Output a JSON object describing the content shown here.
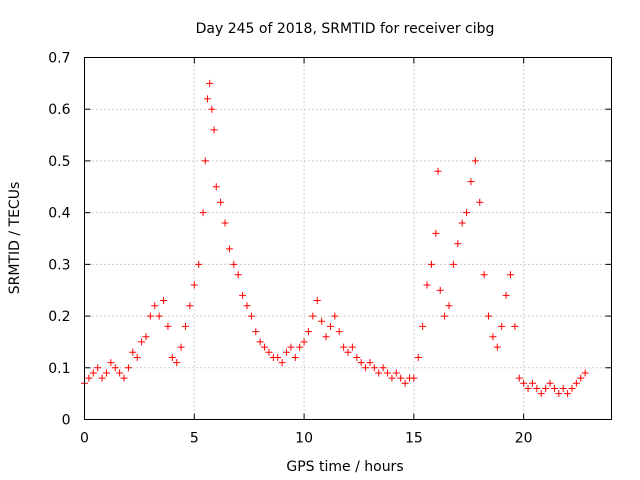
{
  "chart_data": {
    "type": "scatter",
    "title": "Day 245 of 2018, SRMTID for receiver cibg",
    "xlabel": "GPS time / hours",
    "ylabel": "SRMTID / TECUs",
    "xlim": [
      0,
      24
    ],
    "ylim": [
      0,
      0.7
    ],
    "x_ticks": [
      0,
      5,
      10,
      15,
      20
    ],
    "x_tick_labels": [
      "0",
      "5",
      "10",
      "15",
      "20"
    ],
    "y_ticks": [
      0,
      0.1,
      0.2,
      0.3,
      0.4,
      0.5,
      0.6,
      0.7
    ],
    "y_tick_labels": [
      "0",
      "0.1",
      "0.2",
      "0.3",
      "0.4",
      "0.5",
      "0.6",
      "0.7"
    ],
    "grid": true,
    "marker": "plus",
    "series": [
      {
        "name": "SRMTID",
        "color": "#ff0000",
        "x": [
          0.0,
          0.2,
          0.4,
          0.6,
          0.8,
          1.0,
          1.2,
          1.4,
          1.6,
          1.8,
          2.0,
          2.2,
          2.4,
          2.6,
          2.8,
          3.0,
          3.2,
          3.4,
          3.6,
          3.8,
          4.0,
          4.2,
          4.4,
          4.6,
          4.8,
          5.0,
          5.2,
          5.4,
          5.5,
          5.6,
          5.7,
          5.8,
          5.9,
          6.0,
          6.2,
          6.4,
          6.6,
          6.8,
          7.0,
          7.2,
          7.4,
          7.6,
          7.8,
          8.0,
          8.2,
          8.4,
          8.6,
          8.8,
          9.0,
          9.2,
          9.4,
          9.6,
          9.8,
          10.0,
          10.2,
          10.4,
          10.6,
          10.8,
          11.0,
          11.2,
          11.4,
          11.6,
          11.8,
          12.0,
          12.2,
          12.4,
          12.6,
          12.8,
          13.0,
          13.2,
          13.4,
          13.6,
          13.8,
          14.0,
          14.2,
          14.4,
          14.6,
          14.8,
          15.0,
          15.2,
          15.4,
          15.6,
          15.8,
          16.0,
          16.1,
          16.2,
          16.4,
          16.6,
          16.8,
          17.0,
          17.2,
          17.4,
          17.6,
          17.8,
          18.0,
          18.2,
          18.4,
          18.6,
          18.8,
          19.0,
          19.2,
          19.4,
          19.6,
          19.8,
          20.0,
          20.2,
          20.4,
          20.6,
          20.8,
          21.0,
          21.2,
          21.4,
          21.6,
          21.8,
          22.0,
          22.2,
          22.4,
          22.6,
          22.8
        ],
        "y": [
          0.07,
          0.08,
          0.09,
          0.1,
          0.08,
          0.09,
          0.11,
          0.1,
          0.09,
          0.08,
          0.1,
          0.13,
          0.12,
          0.15,
          0.16,
          0.2,
          0.22,
          0.2,
          0.23,
          0.18,
          0.12,
          0.11,
          0.14,
          0.18,
          0.22,
          0.26,
          0.3,
          0.4,
          0.5,
          0.62,
          0.65,
          0.6,
          0.56,
          0.45,
          0.42,
          0.38,
          0.33,
          0.3,
          0.28,
          0.24,
          0.22,
          0.2,
          0.17,
          0.15,
          0.14,
          0.13,
          0.12,
          0.12,
          0.11,
          0.13,
          0.14,
          0.12,
          0.14,
          0.15,
          0.17,
          0.2,
          0.23,
          0.19,
          0.16,
          0.18,
          0.2,
          0.17,
          0.14,
          0.13,
          0.14,
          0.12,
          0.11,
          0.1,
          0.11,
          0.1,
          0.09,
          0.1,
          0.09,
          0.08,
          0.09,
          0.08,
          0.07,
          0.08,
          0.08,
          0.12,
          0.18,
          0.26,
          0.3,
          0.36,
          0.48,
          0.25,
          0.2,
          0.22,
          0.3,
          0.34,
          0.38,
          0.4,
          0.46,
          0.5,
          0.42,
          0.28,
          0.2,
          0.16,
          0.14,
          0.18,
          0.24,
          0.28,
          0.18,
          0.08,
          0.07,
          0.06,
          0.07,
          0.06,
          0.05,
          0.06,
          0.07,
          0.06,
          0.05,
          0.06,
          0.05,
          0.06,
          0.07,
          0.08,
          0.09
        ]
      }
    ]
  }
}
